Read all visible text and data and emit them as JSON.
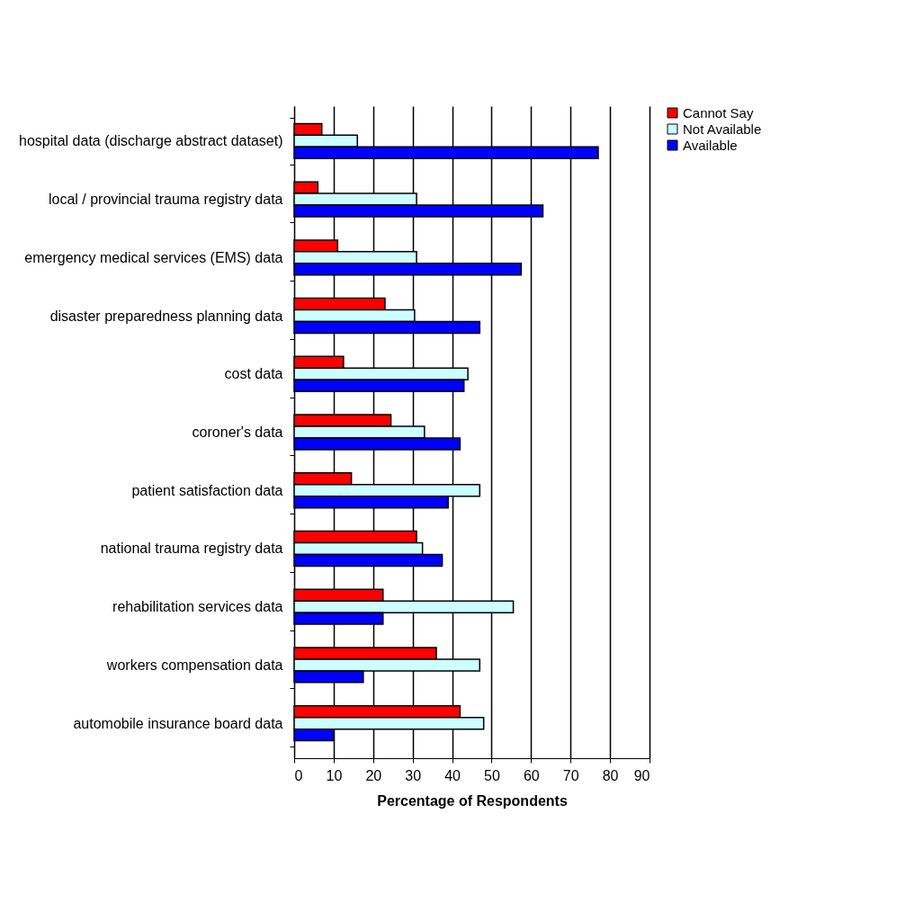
{
  "chart_data": {
    "type": "bar",
    "orientation": "horizontal",
    "xlabel": "Percentage of Respondents",
    "categories": [
      "hospital data (discharge abstract dataset)",
      "local / provincial trauma registry data",
      "emergency medical services (EMS) data",
      "disaster preparedness planning data",
      "cost data",
      "coroner's data",
      "patient satisfaction data",
      "national trauma registry data",
      "rehabilitation services data",
      "workers compensation data",
      "automobile insurance board data"
    ],
    "series": [
      {
        "name": "Cannot Say",
        "color": "#ff0000",
        "values": [
          7,
          6,
          11,
          23,
          12.5,
          24.5,
          14.5,
          31,
          22.5,
          36,
          42
        ]
      },
      {
        "name": "Not Available",
        "color": "#ccffff",
        "values": [
          16,
          31,
          31,
          30.5,
          44,
          33,
          47,
          32.5,
          55.5,
          47,
          48
        ]
      },
      {
        "name": "Available",
        "color": "#0000ff",
        "values": [
          77,
          63,
          57.5,
          47,
          43,
          42,
          39,
          37.5,
          22.5,
          17.5,
          10
        ]
      }
    ],
    "xlim": [
      0,
      90
    ],
    "xticks": [
      0,
      10,
      20,
      30,
      40,
      50,
      60,
      70,
      80,
      90
    ],
    "grid": "x",
    "legend": "right"
  }
}
